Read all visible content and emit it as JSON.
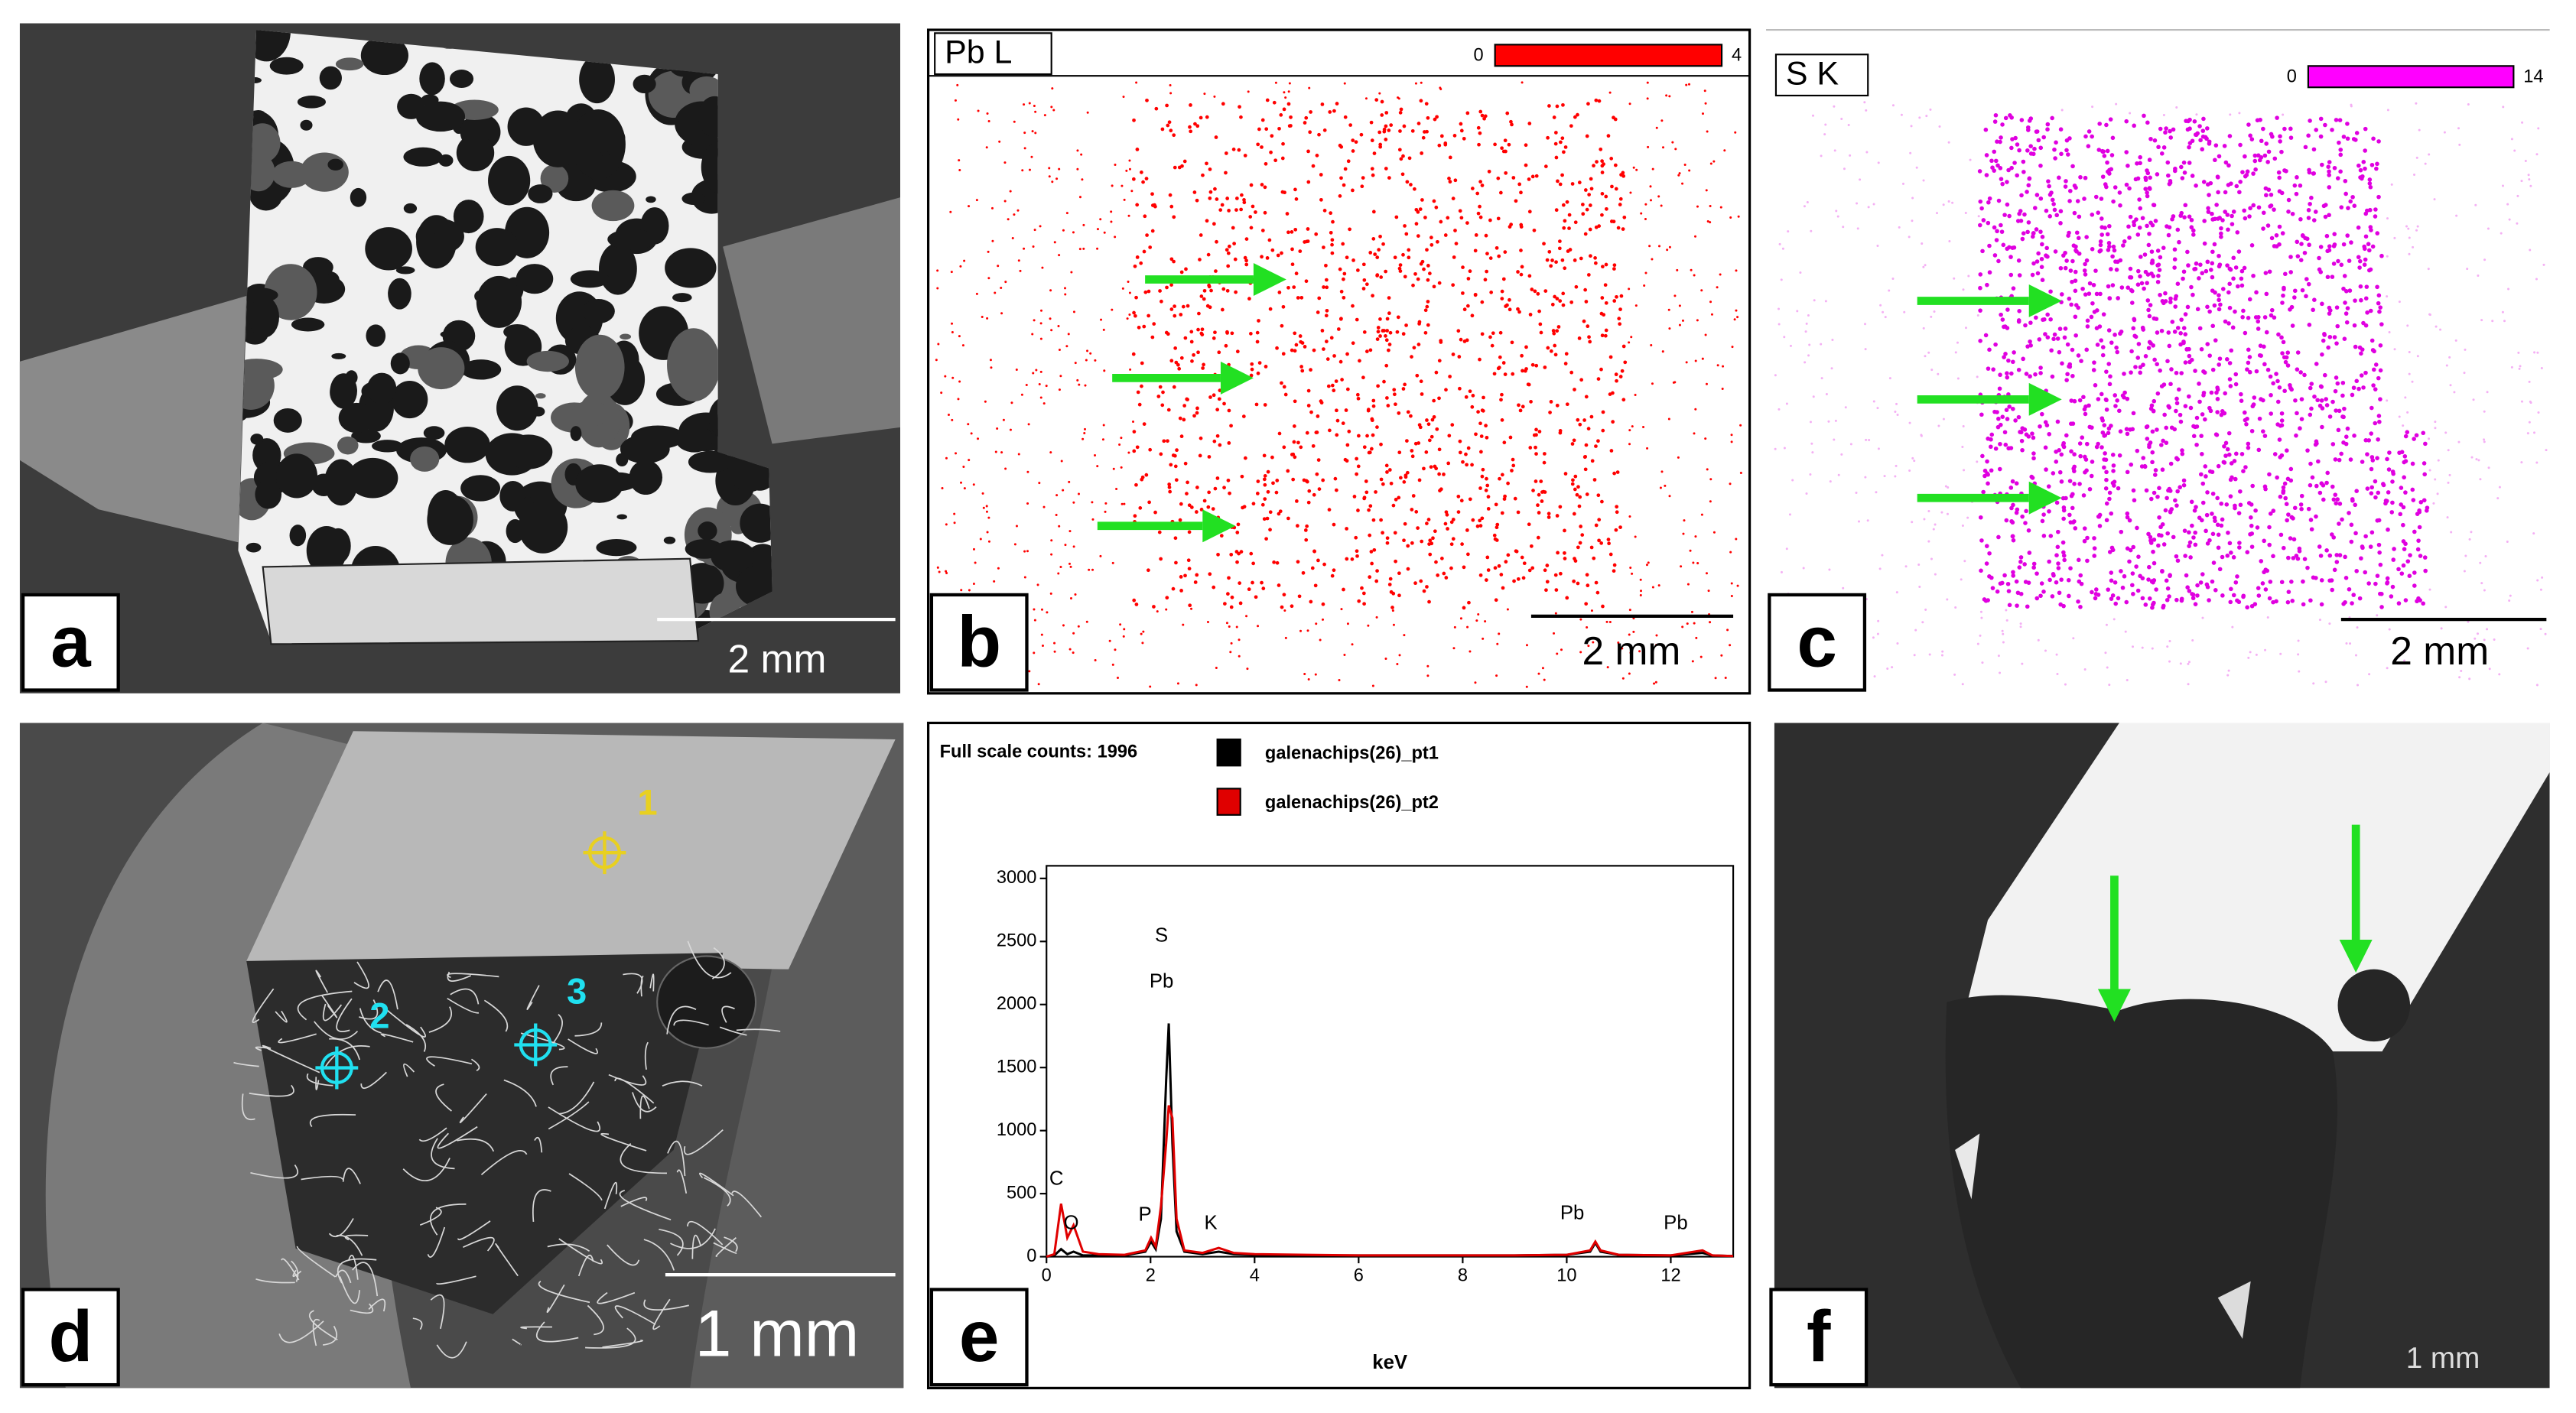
{
  "panels": {
    "a": {
      "label": "a",
      "scale_bar": "2 mm"
    },
    "b": {
      "label": "b",
      "element": "Pb L",
      "scale_min": "0",
      "scale_max": "4",
      "scale_bar": "2 mm"
    },
    "c": {
      "label": "c",
      "element": "S K",
      "scale_min": "0",
      "scale_max": "14",
      "scale_bar": "2 mm"
    },
    "d": {
      "label": "d",
      "points": [
        "1",
        "2",
        "3"
      ],
      "scale_bar": "1 mm"
    },
    "e": {
      "label": "e"
    },
    "f": {
      "label": "f",
      "scale_bar": "1 mm"
    }
  },
  "chart_data": {
    "type": "line",
    "title": "Full scale counts: 1996",
    "xlabel": "keV",
    "x": [
      0,
      0.15,
      0.28,
      0.4,
      0.52,
      0.7,
      1.0,
      1.5,
      1.9,
      2.01,
      2.1,
      2.2,
      2.3,
      2.35,
      2.42,
      2.5,
      2.65,
      3.0,
      3.31,
      3.6,
      4,
      5,
      6,
      7,
      8,
      9,
      10,
      10.45,
      10.55,
      10.65,
      11,
      12,
      12.61,
      12.8,
      13.2
    ],
    "series": [
      {
        "name": "galenachips(26)_pt1",
        "color": "#000000",
        "values": [
          0,
          10,
          60,
          20,
          40,
          10,
          10,
          10,
          40,
          120,
          60,
          300,
          1400,
          1850,
          900,
          200,
          40,
          20,
          40,
          20,
          15,
          10,
          10,
          10,
          10,
          10,
          15,
          40,
          110,
          40,
          15,
          10,
          30,
          10,
          5
        ]
      },
      {
        "name": "galenachips(26)_pt2",
        "color": "#e00000",
        "values": [
          0,
          20,
          420,
          150,
          250,
          40,
          20,
          15,
          50,
          150,
          80,
          400,
          900,
          1200,
          1100,
          300,
          50,
          30,
          70,
          30,
          20,
          15,
          10,
          10,
          10,
          10,
          15,
          50,
          120,
          50,
          15,
          10,
          50,
          10,
          5
        ]
      }
    ],
    "xlim": [
      0,
      13.2
    ],
    "ylim": [
      0,
      3100
    ],
    "xticks": [
      0,
      2,
      4,
      6,
      8,
      10,
      12
    ],
    "yticks": [
      0,
      500,
      1000,
      1500,
      2000,
      2500,
      3000
    ],
    "peak_labels": [
      "C",
      "O",
      "P",
      "S",
      "Pb",
      "K",
      "Pb",
      "Pb"
    ]
  }
}
